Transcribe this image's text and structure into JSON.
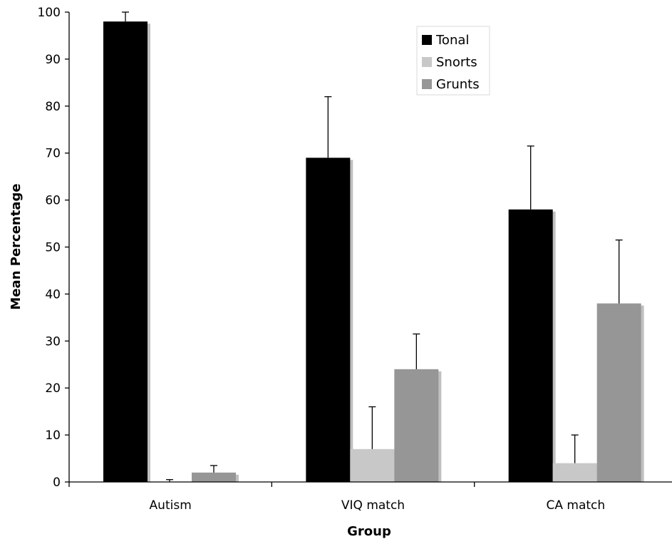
{
  "chart_data": {
    "type": "bar",
    "title": "",
    "xlabel": "Group",
    "ylabel": "Mean Percentage",
    "categories": [
      "Autism",
      "VIQ match",
      "CA match"
    ],
    "series": [
      {
        "name": "Tonal",
        "color": "#000000",
        "values": [
          98,
          69,
          58
        ],
        "errors": [
          2,
          13,
          13.5
        ]
      },
      {
        "name": "Snorts",
        "color": "#c8c8c8",
        "values": [
          0,
          7,
          4
        ],
        "errors": [
          0.5,
          9,
          6
        ]
      },
      {
        "name": "Grunts",
        "color": "#969696",
        "values": [
          2,
          24,
          38
        ],
        "errors": [
          1.5,
          7.5,
          13.5
        ]
      }
    ],
    "ylim": [
      0,
      100
    ],
    "yticks": [
      0,
      10,
      20,
      30,
      40,
      50,
      60,
      70,
      80,
      90,
      100
    ],
    "grid": false,
    "legend_position": "top-right"
  }
}
